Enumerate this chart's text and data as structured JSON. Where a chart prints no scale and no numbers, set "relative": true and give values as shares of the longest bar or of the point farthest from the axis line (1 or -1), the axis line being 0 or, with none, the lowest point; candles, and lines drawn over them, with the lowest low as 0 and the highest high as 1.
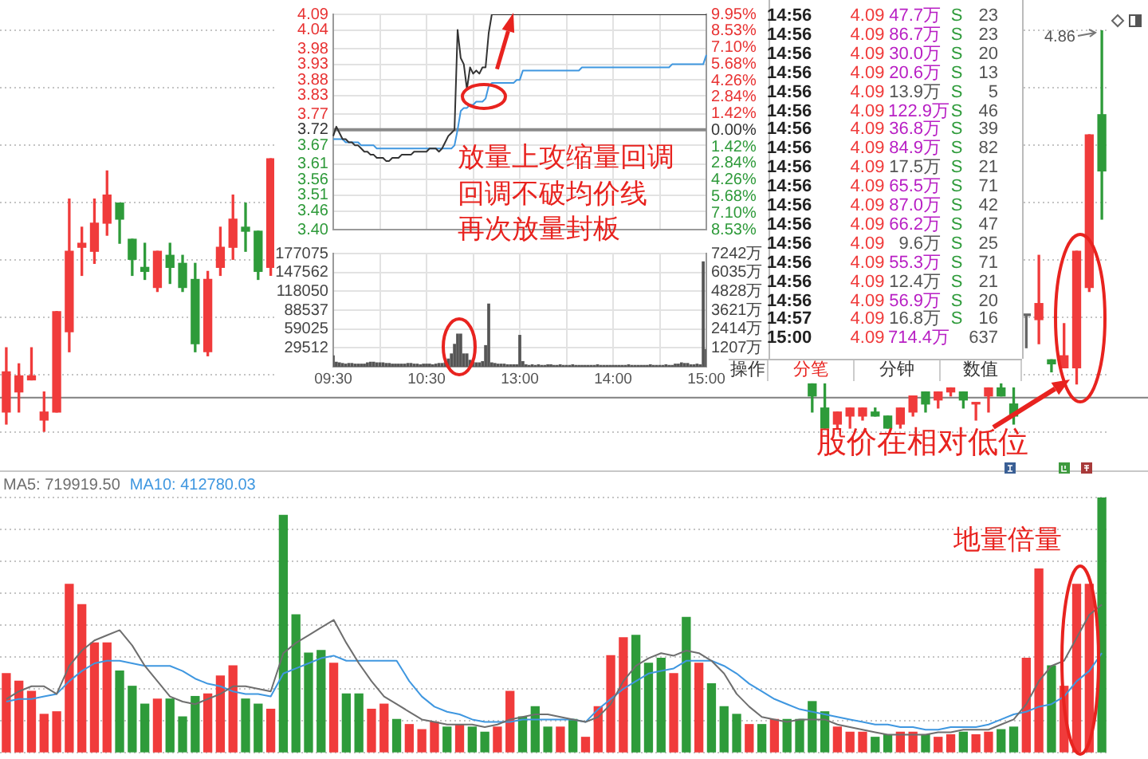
{
  "chart_data": [
    {
      "type": "candlestick",
      "relative": true,
      "categories": [
        null,
        null,
        null,
        null,
        null,
        null,
        null,
        null,
        null,
        null,
        null,
        null,
        null,
        null,
        null,
        null,
        null,
        null,
        null,
        null,
        null,
        null,
        null,
        null,
        null,
        null,
        null,
        null,
        null,
        null,
        null,
        null,
        null,
        null,
        null,
        null,
        null,
        null,
        null,
        null,
        null,
        null,
        null,
        null,
        null,
        null,
        null,
        null,
        null,
        null,
        null,
        null,
        null,
        null,
        null,
        null,
        null,
        null,
        null,
        null,
        null,
        null,
        null,
        null,
        null,
        null,
        null,
        null,
        null,
        null,
        null,
        null,
        null,
        null,
        null,
        null,
        null,
        null,
        null,
        null,
        null,
        null,
        null,
        null,
        null,
        null,
        null,
        null
      ],
      "ohlc": [
        [
          0.05,
          0.21,
          0.02,
          0.15
        ],
        [
          0.1,
          0.17,
          0.05,
          0.14
        ],
        [
          0.13,
          0.21,
          0.13,
          0.14
        ],
        [
          0.03,
          0.1,
          0,
          0.05
        ],
        [
          0.05,
          0.3,
          0.05,
          0.3
        ],
        [
          0.25,
          0.58,
          0.2,
          0.45
        ],
        [
          0.46,
          0.51,
          0.39,
          0.47
        ],
        [
          0.45,
          0.58,
          0.42,
          0.52
        ],
        [
          0.52,
          0.65,
          0.49,
          0.59
        ],
        [
          0.57,
          0.57,
          0.47,
          0.53
        ],
        [
          0.48,
          0.48,
          0.39,
          0.43
        ],
        [
          0.41,
          0.47,
          0.38,
          0.4
        ],
        [
          0.36,
          0.45,
          0.35,
          0.45
        ],
        [
          0.44,
          0.47,
          0.37,
          0.41
        ],
        [
          0.42,
          0.44,
          0.35,
          0.36
        ],
        [
          0.38,
          0.42,
          0.2,
          0.22
        ],
        [
          0.2,
          0.4,
          0.19,
          0.38
        ],
        [
          0.41,
          0.51,
          0.39,
          0.46
        ],
        [
          0.46,
          0.59,
          0.43,
          0.53
        ],
        [
          0.51,
          0.57,
          0.45,
          0.5
        ],
        [
          0.5,
          0.5,
          0.38,
          0.4
        ],
        [
          0.41,
          0.68,
          0.39,
          0.68
        ],
        null,
        null,
        null,
        null,
        null,
        null,
        null,
        null,
        null,
        null,
        null,
        null,
        null,
        null,
        null,
        null,
        null,
        null,
        null,
        null,
        null,
        null,
        null,
        null,
        null,
        null,
        null,
        null,
        null,
        null,
        null,
        null,
        null,
        null,
        null,
        null,
        null,
        null,
        null,
        null,
        null,
        null,
        [
          0.12,
          0.12,
          0.05,
          0.09
        ],
        [
          0.06,
          0.12,
          0.01,
          0.01
        ],
        [
          0.02,
          0.05,
          0.01,
          0.05
        ],
        [
          0.04,
          0.06,
          0.01,
          0.06
        ],
        [
          0.04,
          0.06,
          0.03,
          0.06
        ],
        [
          0.05,
          0.06,
          0.04,
          0.04
        ],
        [
          0.04,
          0.04,
          0.01,
          0.01
        ],
        [
          0.02,
          0.06,
          0.01,
          0.06
        ],
        [
          0.05,
          0.09,
          0.04,
          0.09
        ],
        [
          0.1,
          0.1,
          0.05,
          0.07
        ],
        [
          0.08,
          0.1,
          0.06,
          0.1
        ],
        [
          0.1,
          0.11,
          0.09,
          0.11
        ],
        [
          0.1,
          0.1,
          0.06,
          0.08
        ],
        [
          0.07,
          0.07,
          0.03,
          0.07
        ],
        [
          0.09,
          0.11,
          0.05,
          0.11
        ],
        [
          0.11,
          0.12,
          0.09,
          0.09
        ],
        [
          0.07,
          0.11,
          0.02,
          0.04
        ],
        [
          0.29,
          0.29,
          0.21,
          0.29
        ],
        [
          0.28,
          0.44,
          0.22,
          0.32
        ],
        [
          0.18,
          0.18,
          0.15,
          0.17
        ],
        [
          0.16,
          0.27,
          0.16,
          0.19
        ],
        [
          0.16,
          0.45,
          0.12,
          0.45
        ],
        [
          0.36,
          0.74,
          0.35,
          0.74
        ],
        [
          0.79,
          1,
          0.53,
          0.65
        ]
      ],
      "colors": [
        "#f03b3b",
        "#f03b3b",
        "#f03b3b",
        "#f03b3b",
        "#f03b3b",
        "#f03b3b",
        "#f03b3b",
        "#f03b3b",
        "#f03b3b",
        "#2e9b3a",
        "#2e9b3a",
        "#2e9b3a",
        "#f03b3b",
        "#2e9b3a",
        "#2e9b3a",
        "#2e9b3a",
        "#f03b3b",
        "#f03b3b",
        "#f03b3b",
        "#2e9b3a",
        "#2e9b3a",
        "#f03b3b",
        null,
        null,
        null,
        null,
        null,
        null,
        null,
        null,
        null,
        null,
        null,
        null,
        null,
        null,
        null,
        null,
        null,
        null,
        null,
        null,
        null,
        null,
        null,
        null,
        null,
        null,
        null,
        null,
        null,
        null,
        null,
        null,
        null,
        null,
        null,
        null,
        null,
        null,
        null,
        null,
        null,
        null,
        "#2e9b3a",
        "#2e9b3a",
        "#f03b3b",
        "#f03b3b",
        "#f03b3b",
        "#2e9b3a",
        "#2e9b3a",
        "#f03b3b",
        "#f03b3b",
        "#2e9b3a",
        "#f03b3b",
        "#f03b3b",
        "#2e9b3a",
        "#f03b3b",
        "#f03b3b",
        "#2e9b3a",
        "#2e9b3a",
        "#666666",
        "#f03b3b",
        "#2e9b3a",
        "#f03b3b",
        "#f03b3b",
        "#f03b3b",
        "#2e9b3a"
      ],
      "grid": "y",
      "ref_lines": [
        {
          "axis": "y",
          "value": 0.086,
          "color": "#7f7f7f"
        }
      ],
      "annotations": [
        "4.86",
        "股价在相对低位"
      ]
    },
    {
      "type": "line",
      "categories": [
        null,
        null,
        null,
        null,
        null,
        null,
        null,
        null,
        null,
        null,
        null,
        null,
        null,
        null,
        null,
        null,
        null,
        null,
        null,
        null,
        null,
        null,
        null,
        null,
        null,
        null,
        null,
        null,
        null,
        null,
        null,
        null,
        null,
        null,
        null,
        null,
        null,
        null,
        null,
        null,
        null,
        null,
        null,
        null,
        null,
        null,
        null,
        null,
        null,
        null,
        null,
        null,
        null,
        null,
        null,
        null,
        null,
        null,
        null,
        null,
        null,
        null,
        null,
        null,
        null,
        null,
        null,
        null,
        null,
        null,
        null,
        null,
        null,
        null,
        null,
        null,
        null,
        null,
        null,
        null,
        null,
        null,
        null,
        null,
        null,
        null,
        null,
        null,
        null,
        null,
        null,
        null,
        null,
        null,
        null,
        null,
        null,
        null,
        null,
        null,
        null,
        null,
        null,
        null,
        null,
        null,
        null,
        null,
        null,
        null,
        null,
        null,
        null,
        null,
        null,
        null,
        null,
        null,
        null,
        null,
        null
      ],
      "ylim": [
        3.4,
        4.09
      ],
      "yticks": [
        {
          "value": 3.4,
          "label": "3.40"
        },
        3.46,
        3.51,
        3.56,
        3.61,
        3.67,
        3.72,
        3.77,
        3.83,
        3.88,
        3.93,
        3.98,
        4.04,
        4.09
      ],
      "y2lim": [
        -8.53,
        9.95
      ],
      "y2ticks": [
        {
          "value": -8.53,
          "label": "8.53%"
        },
        {
          "value": -7.1,
          "label": "7.10%"
        },
        {
          "value": -5.68,
          "label": "5.68%"
        },
        {
          "value": -4.26,
          "label": "4.26%"
        },
        {
          "value": -2.84,
          "label": "2.84%"
        },
        {
          "value": -1.42,
          "label": "1.42%"
        },
        {
          "value": 0,
          "label": "0.00%"
        },
        {
          "value": 1.42,
          "label": "1.42%"
        },
        {
          "value": 2.84,
          "label": "2.84%"
        },
        {
          "value": 4.26,
          "label": "4.26%"
        },
        {
          "value": 5.68,
          "label": "5.68%"
        },
        {
          "value": 7.1,
          "label": "7.10%"
        },
        {
          "value": 8.53,
          "label": "8.53%"
        },
        {
          "value": 9.95,
          "label": "9.95%"
        }
      ],
      "series": [
        {
          "color": "#333333",
          "values": [
            3.7,
            3.73,
            3.71,
            3.69,
            3.69,
            3.68,
            3.68,
            3.67,
            3.67,
            3.66,
            3.65,
            3.65,
            3.64,
            3.64,
            3.63,
            3.63,
            3.63,
            3.62,
            3.62,
            3.63,
            3.63,
            3.63,
            3.64,
            3.64,
            3.64,
            3.64,
            3.65,
            3.65,
            3.65,
            3.65,
            3.65,
            3.66,
            3.66,
            3.66,
            3.65,
            3.66,
            3.68,
            3.7,
            3.71,
            3.72,
            4.04,
            3.95,
            3.93,
            3.85,
            3.92,
            3.9,
            3.91,
            3.9,
            3.92,
            3.92,
            4.03,
            4.09,
            4.09,
            4.09,
            4.09,
            4.09,
            4.09,
            4.09,
            4.09,
            4.09,
            4.09,
            4.09,
            4.09,
            4.09,
            4.09,
            4.09,
            4.09,
            4.09,
            4.09,
            4.09,
            4.09,
            4.09,
            4.09,
            4.09,
            4.09,
            4.09,
            4.09,
            4.09,
            4.09,
            4.09,
            4.09,
            4.09,
            4.09,
            4.09,
            4.09,
            4.09,
            4.09,
            4.09,
            4.09,
            4.09,
            4.09,
            4.09,
            4.09,
            4.09,
            4.09,
            4.09,
            4.09,
            4.09,
            4.09,
            4.09,
            4.09,
            4.09,
            4.09,
            4.09,
            4.09,
            4.09,
            4.09,
            4.09,
            4.09,
            4.09,
            4.09,
            4.09,
            4.09,
            4.09,
            4.09,
            4.09,
            4.09,
            4.09,
            4.09,
            4.09,
            4.09
          ]
        },
        {
          "color": "#3f97e0",
          "values": [
            3.69,
            3.69,
            3.69,
            3.69,
            3.68,
            3.68,
            3.68,
            3.68,
            3.68,
            3.67,
            3.67,
            3.67,
            3.67,
            3.67,
            3.66,
            3.66,
            3.66,
            3.66,
            3.66,
            3.66,
            3.66,
            3.66,
            3.66,
            3.66,
            3.66,
            3.66,
            3.66,
            3.66,
            3.66,
            3.66,
            3.66,
            3.66,
            3.66,
            3.66,
            3.66,
            3.66,
            3.66,
            3.66,
            3.66,
            3.67,
            3.72,
            3.78,
            3.79,
            3.79,
            3.8,
            3.8,
            3.81,
            3.81,
            3.81,
            3.82,
            3.86,
            3.87,
            3.87,
            3.87,
            3.87,
            3.87,
            3.87,
            3.87,
            3.87,
            3.88,
            3.88,
            3.91,
            3.91,
            3.91,
            3.91,
            3.91,
            3.91,
            3.91,
            3.91,
            3.91,
            3.91,
            3.91,
            3.91,
            3.91,
            3.91,
            3.91,
            3.91,
            3.91,
            3.91,
            3.91,
            3.92,
            3.92,
            3.92,
            3.92,
            3.92,
            3.92,
            3.92,
            3.92,
            3.92,
            3.92,
            3.92,
            3.92,
            3.92,
            3.92,
            3.92,
            3.92,
            3.92,
            3.92,
            3.92,
            3.92,
            3.92,
            3.92,
            3.92,
            3.92,
            3.92,
            3.92,
            3.92,
            3.92,
            3.92,
            3.93,
            3.93,
            3.93,
            3.93,
            3.93,
            3.93,
            3.93,
            3.93,
            3.93,
            3.93,
            3.93,
            3.96
          ]
        }
      ],
      "ref_lines": [
        {
          "axis": "y",
          "value": 3.72,
          "color": "#8a8a8a"
        }
      ],
      "grid": true,
      "tick_labels": "y",
      "annotations": [
        "放量上攻缩量回调",
        "回调不破均价线",
        "再次放量封板"
      ]
    },
    {
      "type": "bar",
      "categories": [
        "09:30",
        null,
        null,
        null,
        null,
        null,
        null,
        null,
        null,
        null,
        null,
        null,
        null,
        null,
        null,
        null,
        null,
        null,
        null,
        null,
        null,
        null,
        null,
        null,
        null,
        null,
        null,
        null,
        null,
        null,
        "10:30",
        null,
        null,
        null,
        null,
        null,
        null,
        null,
        null,
        null,
        null,
        null,
        null,
        null,
        null,
        null,
        null,
        null,
        null,
        null,
        null,
        null,
        null,
        null,
        null,
        null,
        null,
        null,
        null,
        null,
        "13:00",
        null,
        null,
        null,
        null,
        null,
        null,
        null,
        null,
        null,
        null,
        null,
        null,
        null,
        null,
        null,
        null,
        null,
        null,
        null,
        null,
        null,
        null,
        null,
        null,
        null,
        null,
        null,
        null,
        null,
        "14:00",
        null,
        null,
        null,
        null,
        null,
        null,
        null,
        null,
        null,
        null,
        null,
        null,
        null,
        null,
        null,
        null,
        null,
        null,
        null,
        null,
        null,
        null,
        null,
        null,
        null,
        null,
        null,
        null,
        null,
        "15:00"
      ],
      "ylim": [
        0,
        177075
      ],
      "yticks": [
        29512,
        59025,
        88537,
        118050,
        147562,
        177075
      ],
      "y2lim": [
        0,
        7242
      ],
      "y2ticks": [
        {
          "value": 1207,
          "label": "1207万"
        },
        {
          "value": 2414,
          "label": "2414万"
        },
        {
          "value": 3621,
          "label": "3621万"
        },
        {
          "value": 4828,
          "label": "4828万"
        },
        {
          "value": 6035,
          "label": "6035万"
        },
        {
          "value": 7242,
          "label": "7242万"
        }
      ],
      "color": "#555555",
      "grid": true,
      "values": [
        17000,
        7000,
        6000,
        5000,
        4000,
        5000,
        5000,
        4000,
        4000,
        4000,
        4000,
        6000,
        7000,
        7000,
        6000,
        6000,
        6000,
        5000,
        5000,
        4000,
        4000,
        4000,
        4000,
        4000,
        5000,
        5000,
        4000,
        4000,
        3000,
        4000,
        4000,
        4000,
        3000,
        4000,
        5000,
        5000,
        6000,
        12000,
        20000,
        35000,
        51000,
        51000,
        20000,
        20000,
        10000,
        7000,
        6000,
        6000,
        8000,
        33000,
        98000,
        6000,
        5000,
        4000,
        4000,
        4000,
        3000,
        3000,
        3000,
        3000,
        49000,
        8000,
        3000,
        2000,
        3000,
        2000,
        3000,
        2000,
        2000,
        3000,
        3000,
        2000,
        2000,
        3000,
        2000,
        2000,
        2000,
        3000,
        2000,
        2000,
        2000,
        2000,
        2000,
        2000,
        2000,
        3000,
        2000,
        2000,
        2000,
        2000,
        2000,
        2000,
        2000,
        2000,
        2000,
        3000,
        2000,
        2000,
        2000,
        2000,
        2000,
        2000,
        3000,
        2000,
        2000,
        2000,
        2000,
        3000,
        2000,
        2000,
        4000,
        4000,
        6000,
        5000,
        5000,
        3000,
        3000,
        4000,
        3000,
        164000,
        27000
      ]
    },
    {
      "type": "other",
      "categories": [
        "操作",
        "分笔",
        "分钟",
        "数值"
      ],
      "annotations": [
        "14:56",
        "4.09",
        "47.7万",
        "S",
        "23",
        "14:56",
        "4.09",
        "86.7万",
        "S",
        "23",
        "14:56",
        "4.09",
        "30.0万",
        "S",
        "20",
        "14:56",
        "4.09",
        "20.6万",
        "S",
        "13",
        "14:56",
        "4.09",
        "13.9万",
        "S",
        "5",
        "14:56",
        "4.09",
        "122.9万",
        "S",
        "46",
        "14:56",
        "4.09",
        "36.8万",
        "S",
        "39",
        "14:56",
        "4.09",
        "84.9万",
        "S",
        "82",
        "14:56",
        "4.09",
        "17.5万",
        "S",
        "21",
        "14:56",
        "4.09",
        "65.5万",
        "S",
        "71",
        "14:56",
        "4.09",
        "87.0万",
        "S",
        "42",
        "14:56",
        "4.09",
        "66.2万",
        "S",
        "47",
        "14:56",
        "4.09",
        "9.6万",
        "S",
        "25",
        "14:56",
        "4.09",
        "55.3万",
        "S",
        "71",
        "14:56",
        "4.09",
        "12.4万",
        "S",
        "21",
        "14:56",
        "4.09",
        "56.9万",
        "S",
        "20",
        "14:57",
        "4.09",
        "16.8万",
        "S",
        "16",
        "15:00",
        "4.09",
        "714.4万",
        null,
        "637"
      ]
    },
    {
      "type": "bar",
      "relative": true,
      "categories": [
        null,
        null,
        null,
        null,
        null,
        null,
        null,
        null,
        null,
        null,
        null,
        null,
        null,
        null,
        null,
        null,
        null,
        null,
        null,
        null,
        null,
        null,
        null,
        null,
        null,
        null,
        null,
        null,
        null,
        null,
        null,
        null,
        null,
        null,
        null,
        null,
        null,
        null,
        null,
        null,
        null,
        null,
        null,
        null,
        null,
        null,
        null,
        null,
        null,
        null,
        null,
        null,
        null,
        null,
        null,
        null,
        null,
        null,
        null,
        null,
        null,
        null,
        null,
        null,
        null,
        null,
        null,
        null,
        null,
        null,
        null,
        null,
        null,
        null,
        null,
        null,
        null,
        null,
        null,
        null,
        null,
        null,
        null,
        null,
        null,
        null,
        null,
        null
      ],
      "series": [
        {
          "type": "bar",
          "colors": [
            "#f03b3b",
            "#f03b3b",
            "#f03b3b",
            "#f03b3b",
            "#f03b3b",
            "#f03b3b",
            "#f03b3b",
            "#f03b3b",
            "#f03b3b",
            "#2e9b3a",
            "#2e9b3a",
            "#2e9b3a",
            "#f03b3b",
            "#2e9b3a",
            "#2e9b3a",
            "#2e9b3a",
            "#f03b3b",
            "#f03b3b",
            "#f03b3b",
            "#2e9b3a",
            "#2e9b3a",
            "#f03b3b",
            "#2e9b3a",
            "#2e9b3a",
            "#2e9b3a",
            "#2e9b3a",
            "#f03b3b",
            "#2e9b3a",
            "#2e9b3a",
            "#f03b3b",
            "#f03b3b",
            "#2e9b3a",
            "#f03b3b",
            "#f03b3b",
            "#f03b3b",
            "#2e9b3a",
            "#f03b3b",
            "#2e9b3a",
            "#2e9b3a",
            "#f03b3b",
            "#f03b3b",
            "#2e9b3a",
            "#2e9b3a",
            "#2e9b3a",
            "#f03b3b",
            "#2e9b3a",
            "#f03b3b",
            "#f03b3b",
            "#f03b3b",
            "#f03b3b",
            "#2e9b3a",
            "#2e9b3a",
            "#2e9b3a",
            "#f03b3b",
            "#2e9b3a",
            "#f03b3b",
            "#2e9b3a",
            "#2e9b3a",
            "#2e9b3a",
            "#f03b3b",
            "#2e9b3a",
            "#f03b3b",
            "#2e9b3a",
            "#2e9b3a",
            "#2e9b3a",
            "#2e9b3a",
            "#f03b3b",
            "#f03b3b",
            "#f03b3b",
            "#2e9b3a",
            "#2e9b3a",
            "#f03b3b",
            "#f03b3b",
            "#2e9b3a",
            "#f03b3b",
            "#f03b3b",
            "#2e9b3a",
            "#f03b3b",
            "#f03b3b",
            "#2e9b3a",
            "#2e9b3a",
            "#f03b3b",
            "#f03b3b",
            "#2e9b3a",
            "#f03b3b",
            "#f03b3b",
            "#f03b3b",
            "#2e9b3a"
          ],
          "values": [
            0.31,
            0.28,
            0.24,
            0.15,
            0.16,
            0.66,
            0.58,
            0.43,
            0.43,
            0.32,
            0.26,
            0.19,
            0.21,
            0.21,
            0.14,
            0.22,
            0.23,
            0.3,
            0.34,
            0.21,
            0.19,
            0.17,
            0.93,
            0.54,
            0.39,
            0.4,
            0.35,
            0.23,
            0.23,
            0.17,
            0.19,
            0.13,
            0.11,
            0.09,
            0.12,
            0.1,
            0.11,
            0.1,
            0.08,
            0.1,
            0.24,
            0.14,
            0.18,
            0.1,
            0.1,
            0.13,
            0.06,
            0.18,
            0.38,
            0.45,
            0.46,
            0.35,
            0.37,
            0.31,
            0.53,
            0.35,
            0.27,
            0.18,
            0.15,
            0.11,
            0.11,
            0.13,
            0.13,
            0.13,
            0.2,
            0.16,
            0.1,
            0.08,
            0.08,
            0.06,
            0.07,
            0.08,
            0.08,
            0.07,
            0.06,
            0.07,
            0.08,
            0.07,
            0.08,
            0.09,
            0.1,
            0.37,
            0.72,
            0.34,
            0.26,
            0.66,
            0.66,
            1
          ]
        },
        {
          "type": "line",
          "name": "MA5: 719919.50",
          "color": "#6e6e6e",
          "values": [
            0.21,
            0.24,
            0.26,
            0.26,
            0.23,
            0.34,
            0.4,
            0.44,
            0.46,
            0.48,
            0.42,
            0.34,
            0.28,
            0.22,
            0.2,
            0.19,
            0.21,
            0.23,
            0.26,
            0.26,
            0.25,
            0.24,
            0.39,
            0.43,
            0.46,
            0.49,
            0.52,
            0.43,
            0.35,
            0.28,
            0.22,
            0.19,
            0.16,
            0.13,
            0.12,
            0.11,
            0.11,
            0.11,
            0.1,
            0.11,
            0.13,
            0.14,
            0.15,
            0.15,
            0.14,
            0.13,
            0.12,
            0.14,
            0.19,
            0.28,
            0.34,
            0.37,
            0.39,
            0.38,
            0.4,
            0.39,
            0.36,
            0.31,
            0.23,
            0.18,
            0.14,
            0.13,
            0.12,
            0.13,
            0.13,
            0.13,
            0.11,
            0.1,
            0.09,
            0.08,
            0.07,
            0.07,
            0.07,
            0.07,
            0.08,
            0.08,
            0.09,
            0.09,
            0.09,
            0.11,
            0.13,
            0.19,
            0.28,
            0.34,
            0.36,
            0.45,
            0.54,
            0.58
          ]
        },
        {
          "type": "line",
          "name": "MA10: 412780.03",
          "color": "#3f97e0",
          "values": [
            0.2,
            0.21,
            0.21,
            0.22,
            0.23,
            0.28,
            0.32,
            0.35,
            0.36,
            0.36,
            0.35,
            0.34,
            0.34,
            0.34,
            0.32,
            0.29,
            0.27,
            0.26,
            0.24,
            0.23,
            0.23,
            0.22,
            0.31,
            0.33,
            0.35,
            0.37,
            0.38,
            0.36,
            0.36,
            0.36,
            0.36,
            0.36,
            0.28,
            0.22,
            0.18,
            0.16,
            0.15,
            0.13,
            0.12,
            0.12,
            0.12,
            0.13,
            0.13,
            0.13,
            0.13,
            0.13,
            0.12,
            0.17,
            0.21,
            0.25,
            0.28,
            0.31,
            0.32,
            0.33,
            0.36,
            0.36,
            0.36,
            0.34,
            0.31,
            0.27,
            0.24,
            0.21,
            0.19,
            0.17,
            0.16,
            0.15,
            0.14,
            0.13,
            0.12,
            0.11,
            0.11,
            0.1,
            0.1,
            0.09,
            0.09,
            0.1,
            0.1,
            0.1,
            0.11,
            0.13,
            0.15,
            0.16,
            0.18,
            0.19,
            0.22,
            0.28,
            0.32,
            0.39
          ]
        }
      ],
      "legend": "top left",
      "grid": "y",
      "annotations": [
        "地量倍量"
      ]
    }
  ]
}
